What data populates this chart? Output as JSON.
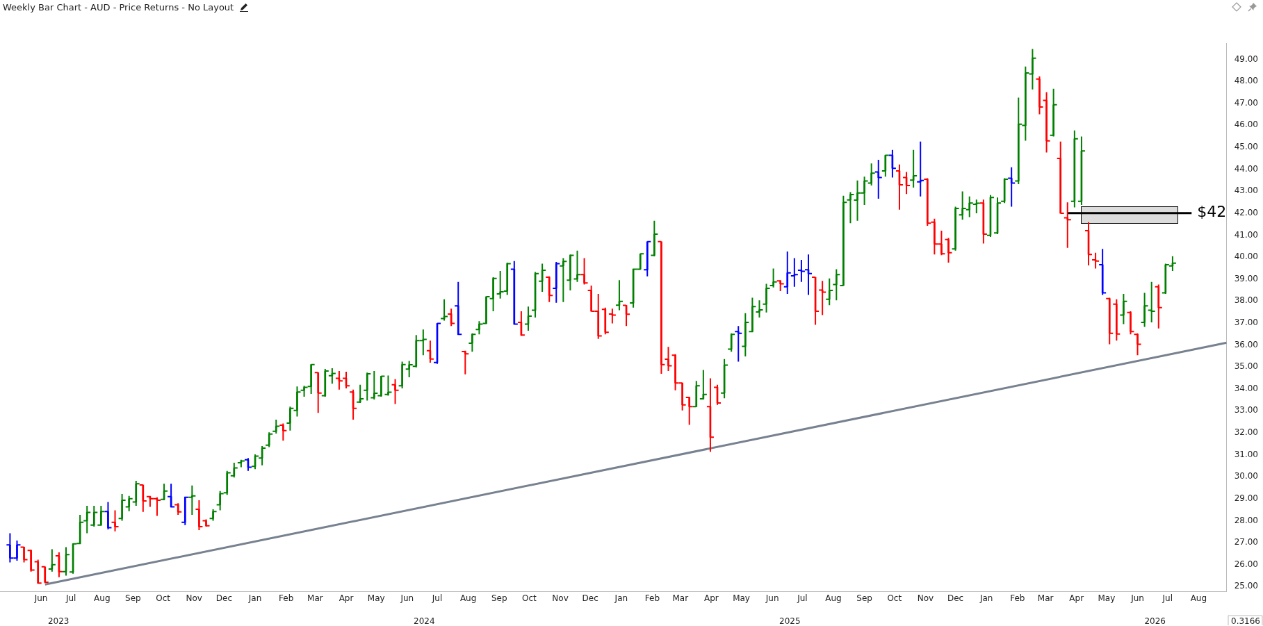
{
  "chart_data": {
    "type": "candlestick",
    "title": "Weekly Bar Chart - AUD - Price Returns - No Layout",
    "x": [
      "2023-05-15",
      "2023-05-22",
      "2023-05-29",
      "2023-06-05",
      "2023-06-12",
      "2023-06-19",
      "2023-06-26",
      "2023-07-03",
      "2023-07-10",
      "2023-07-17",
      "2023-07-24",
      "2023-07-31",
      "2023-08-07",
      "2023-08-14",
      "2023-08-21",
      "2023-08-28",
      "2023-09-04",
      "2023-09-11",
      "2023-09-18",
      "2023-09-25",
      "2023-10-02",
      "2023-10-09",
      "2023-10-16",
      "2023-10-23",
      "2023-10-30",
      "2023-11-06",
      "2023-11-13",
      "2023-11-20",
      "2023-11-27",
      "2023-12-04",
      "2023-12-11",
      "2023-12-18",
      "2023-12-25",
      "2024-01-01",
      "2024-01-08",
      "2024-01-15",
      "2024-01-22",
      "2024-01-29",
      "2024-02-05",
      "2024-02-12",
      "2024-02-19",
      "2024-02-26",
      "2024-03-04",
      "2024-03-11",
      "2024-03-18",
      "2024-03-25",
      "2024-04-01",
      "2024-04-08",
      "2024-04-15",
      "2024-04-22",
      "2024-04-29",
      "2024-05-06",
      "2024-05-13",
      "2024-05-20",
      "2024-05-27",
      "2024-06-03",
      "2024-06-10",
      "2024-06-17",
      "2024-06-24",
      "2024-07-01",
      "2024-07-08",
      "2024-07-15",
      "2024-07-22",
      "2024-07-29",
      "2024-08-05",
      "2024-08-12",
      "2024-08-19",
      "2024-08-26",
      "2024-09-02",
      "2024-09-09",
      "2024-09-16",
      "2024-09-23",
      "2024-09-30",
      "2024-10-07",
      "2024-10-14",
      "2024-10-21",
      "2024-10-28",
      "2024-11-04",
      "2024-11-11",
      "2024-11-18",
      "2024-11-25",
      "2024-12-02",
      "2024-12-09",
      "2024-12-16",
      "2024-12-23",
      "2024-12-30",
      "2025-01-06",
      "2025-01-13",
      "2025-01-20",
      "2025-01-27",
      "2025-02-03",
      "2025-02-10",
      "2025-02-17",
      "2025-02-24",
      "2025-03-03",
      "2025-03-10",
      "2025-03-17",
      "2025-03-24",
      "2025-03-31",
      "2025-04-07",
      "2025-04-14",
      "2025-04-21",
      "2025-04-28",
      "2025-05-05",
      "2025-05-12",
      "2025-05-19",
      "2025-05-26",
      "2025-06-02",
      "2025-06-09",
      "2025-06-16",
      "2025-06-23",
      "2025-06-30",
      "2025-07-07",
      "2025-07-14",
      "2025-07-21",
      "2025-07-28",
      "2025-08-04",
      "2025-08-11",
      "2025-08-18",
      "2025-08-25",
      "2025-09-01",
      "2025-09-08",
      "2025-09-15",
      "2025-09-22",
      "2025-09-29",
      "2025-10-06",
      "2025-10-13",
      "2025-10-20",
      "2025-10-27",
      "2025-11-03",
      "2025-11-10",
      "2025-11-17",
      "2025-11-24",
      "2025-12-01",
      "2025-12-08",
      "2025-12-15",
      "2025-12-22",
      "2025-12-29",
      "2026-01-05",
      "2026-01-12",
      "2026-01-19",
      "2026-01-26",
      "2026-02-02",
      "2026-02-09",
      "2026-02-16",
      "2026-02-23",
      "2026-03-02",
      "2026-03-09",
      "2026-03-16",
      "2026-03-23",
      "2026-03-30",
      "2026-04-06",
      "2026-04-13",
      "2026-04-20",
      "2026-04-27",
      "2026-05-04",
      "2026-05-11",
      "2026-05-18",
      "2026-05-25",
      "2026-06-01",
      "2026-06-08",
      "2026-06-15",
      "2026-06-22",
      "2026-06-29",
      "2026-07-06",
      "2026-07-13",
      "2026-07-20"
    ],
    "ohlc": [
      [
        26.9,
        27.43,
        26.1,
        26.3
      ],
      [
        26.3,
        27.1,
        26.18,
        26.9
      ],
      [
        26.8,
        26.81,
        26.1,
        26.23
      ],
      [
        26.65,
        26.68,
        25.68,
        25.75
      ],
      [
        26.13,
        26.23,
        25.13,
        25.16
      ],
      [
        25.9,
        25.9,
        25.16,
        25.2
      ],
      [
        25.8,
        26.7,
        25.68,
        26.0
      ],
      [
        26.4,
        26.56,
        25.43,
        25.68
      ],
      [
        25.68,
        26.8,
        25.5,
        26.46
      ],
      [
        25.67,
        26.96,
        25.59,
        26.95
      ],
      [
        26.96,
        28.27,
        26.93,
        27.93
      ],
      [
        28.0,
        28.68,
        27.43,
        28.38
      ],
      [
        27.8,
        28.68,
        27.73,
        28.38
      ],
      [
        27.8,
        28.68,
        27.77,
        28.42
      ],
      [
        28.42,
        28.85,
        27.6,
        27.68
      ],
      [
        27.93,
        28.47,
        27.52,
        27.73
      ],
      [
        28.1,
        29.22,
        28.0,
        28.93
      ],
      [
        28.63,
        29.13,
        28.43,
        29.0
      ],
      [
        28.85,
        29.82,
        28.68,
        29.68
      ],
      [
        29.63,
        29.63,
        28.4,
        28.9
      ],
      [
        29.1,
        29.13,
        28.63,
        29.0
      ],
      [
        29.0,
        29.07,
        28.22,
        28.93
      ],
      [
        28.97,
        29.68,
        28.93,
        29.35
      ],
      [
        29.1,
        29.68,
        28.6,
        28.63
      ],
      [
        28.73,
        28.8,
        28.27,
        28.4
      ],
      [
        27.93,
        29.1,
        27.8,
        29.07
      ],
      [
        29.07,
        29.6,
        28.27,
        29.13
      ],
      [
        28.52,
        28.93,
        27.57,
        27.73
      ],
      [
        28.0,
        28.06,
        27.73,
        27.77
      ],
      [
        28.1,
        28.52,
        28.0,
        28.42
      ],
      [
        28.73,
        29.35,
        28.47,
        29.23
      ],
      [
        29.27,
        30.27,
        29.18,
        30.18
      ],
      [
        30.05,
        30.64,
        29.97,
        30.4
      ],
      [
        30.64,
        30.77,
        30.43,
        30.72
      ],
      [
        30.77,
        30.85,
        30.27,
        30.43
      ],
      [
        30.47,
        31.02,
        30.35,
        30.94
      ],
      [
        30.85,
        31.4,
        30.52,
        31.3
      ],
      [
        31.44,
        32.02,
        31.35,
        31.94
      ],
      [
        32.07,
        32.6,
        31.97,
        32.3
      ],
      [
        32.35,
        32.43,
        31.64,
        32.1
      ],
      [
        32.44,
        33.19,
        32.1,
        33.11
      ],
      [
        33.02,
        34.11,
        32.74,
        33.86
      ],
      [
        33.94,
        34.14,
        33.64,
        34.07
      ],
      [
        34.11,
        35.11,
        33.77,
        35.11
      ],
      [
        34.74,
        34.74,
        32.91,
        33.81
      ],
      [
        33.69,
        34.91,
        33.64,
        34.81
      ],
      [
        34.6,
        34.94,
        34.24,
        34.7
      ],
      [
        34.48,
        34.81,
        33.97,
        34.36
      ],
      [
        34.48,
        34.78,
        34.02,
        34.14
      ],
      [
        33.86,
        33.97,
        32.6,
        33.11
      ],
      [
        33.4,
        34.19,
        33.36,
        33.55
      ],
      [
        33.94,
        34.74,
        33.47,
        34.69
      ],
      [
        33.6,
        34.81,
        33.52,
        33.8
      ],
      [
        33.69,
        34.58,
        33.64,
        34.58
      ],
      [
        33.75,
        34.61,
        33.69,
        33.85
      ],
      [
        34.19,
        34.44,
        33.31,
        33.94
      ],
      [
        34.14,
        35.24,
        34.02,
        35.11
      ],
      [
        34.9,
        35.27,
        34.53,
        35.1
      ],
      [
        35.03,
        36.45,
        34.98,
        36.2
      ],
      [
        36.2,
        36.7,
        35.53,
        36.25
      ],
      [
        35.74,
        36.2,
        35.19,
        35.36
      ],
      [
        35.2,
        36.98,
        35.14,
        36.98
      ],
      [
        37.2,
        38.08,
        37.11,
        37.3
      ],
      [
        37.41,
        37.65,
        36.86,
        36.98
      ],
      [
        37.78,
        38.87,
        36.45,
        36.48
      ],
      [
        35.7,
        35.74,
        34.66,
        35.6
      ],
      [
        36.08,
        36.53,
        35.69,
        36.48
      ],
      [
        36.7,
        37.08,
        36.48,
        36.95
      ],
      [
        36.98,
        38.2,
        36.95,
        38.2
      ],
      [
        38.11,
        39.08,
        37.53,
        39.03
      ],
      [
        38.32,
        39.37,
        38.11,
        38.42
      ],
      [
        38.45,
        39.75,
        38.28,
        39.7
      ],
      [
        39.45,
        39.82,
        36.92,
        36.95
      ],
      [
        37.03,
        37.53,
        36.41,
        36.45
      ],
      [
        36.95,
        37.75,
        36.65,
        37.31
      ],
      [
        37.58,
        39.32,
        37.25,
        39.25
      ],
      [
        38.9,
        39.7,
        38.42,
        39.4
      ],
      [
        39.08,
        39.12,
        37.95,
        38.25
      ],
      [
        38.58,
        39.78,
        37.92,
        39.7
      ],
      [
        39.6,
        39.95,
        37.95,
        39.8
      ],
      [
        38.95,
        40.12,
        38.48,
        40.08
      ],
      [
        39.0,
        40.29,
        38.87,
        39.2
      ],
      [
        39.2,
        39.95,
        38.75,
        38.82
      ],
      [
        38.48,
        38.7,
        37.53,
        37.53
      ],
      [
        37.53,
        38.32,
        36.28,
        36.41
      ],
      [
        37.62,
        37.7,
        36.48,
        36.58
      ],
      [
        37.41,
        37.65,
        36.98,
        37.36
      ],
      [
        37.81,
        38.95,
        37.58,
        37.98
      ],
      [
        37.8,
        37.81,
        36.86,
        37.4
      ],
      [
        37.91,
        39.48,
        37.7,
        39.45
      ],
      [
        39.45,
        40.15,
        39.42,
        40.15
      ],
      [
        39.42,
        40.7,
        39.12,
        40.7
      ],
      [
        40.08,
        41.65,
        40.03,
        41.04
      ],
      [
        40.7,
        40.7,
        34.69,
        35.11
      ],
      [
        35.35,
        35.91,
        34.81,
        35.05
      ],
      [
        35.53,
        35.58,
        33.94,
        34.27
      ],
      [
        34.27,
        34.27,
        33.02,
        33.27
      ],
      [
        33.61,
        33.64,
        32.36,
        33.19
      ],
      [
        33.19,
        34.36,
        33.19,
        34.14
      ],
      [
        33.55,
        34.86,
        33.52,
        33.75
      ],
      [
        33.19,
        34.48,
        31.14,
        31.8
      ],
      [
        34.07,
        34.19,
        33.27,
        33.36
      ],
      [
        33.81,
        35.36,
        33.57,
        35.08
      ],
      [
        35.81,
        36.53,
        35.69,
        36.48
      ],
      [
        36.61,
        36.86,
        35.24,
        36.53
      ],
      [
        35.94,
        37.45,
        35.48,
        37.03
      ],
      [
        36.61,
        38.15,
        36.58,
        37.75
      ],
      [
        37.5,
        38.03,
        37.25,
        37.6
      ],
      [
        37.86,
        38.78,
        37.48,
        38.58
      ],
      [
        38.7,
        39.48,
        38.62,
        38.87
      ],
      [
        38.92,
        38.95,
        38.45,
        38.78
      ],
      [
        38.65,
        40.25,
        38.32,
        39.28
      ],
      [
        39.15,
        39.95,
        38.65,
        39.2
      ],
      [
        39.4,
        39.87,
        38.87,
        39.35
      ],
      [
        39.42,
        40.12,
        38.28,
        39.25
      ],
      [
        39.08,
        39.08,
        36.92,
        37.53
      ],
      [
        38.5,
        38.92,
        37.36,
        38.4
      ],
      [
        38.08,
        39.03,
        37.81,
        38.48
      ],
      [
        38.75,
        39.45,
        38.03,
        39.2
      ],
      [
        38.7,
        42.79,
        38.7,
        42.49
      ],
      [
        42.6,
        42.96,
        41.54,
        42.85
      ],
      [
        42.59,
        43.49,
        41.65,
        42.92
      ],
      [
        42.92,
        43.66,
        42.37,
        43.46
      ],
      [
        43.37,
        44.26,
        43.26,
        43.82
      ],
      [
        43.87,
        44.43,
        42.66,
        43.62
      ],
      [
        43.92,
        44.66,
        43.66,
        44.63
      ],
      [
        44.63,
        44.88,
        43.62,
        44.04
      ],
      [
        43.92,
        44.21,
        42.16,
        43.29
      ],
      [
        43.62,
        43.87,
        42.87,
        43.26
      ],
      [
        43.5,
        44.88,
        43.16,
        43.7
      ],
      [
        43.42,
        45.26,
        42.76,
        43.49
      ],
      [
        43.54,
        43.59,
        41.42,
        41.54
      ],
      [
        41.59,
        41.75,
        40.12,
        40.59
      ],
      [
        40.59,
        41.2,
        40.09,
        40.15
      ],
      [
        40.8,
        40.87,
        39.75,
        40.2
      ],
      [
        40.37,
        42.29,
        40.29,
        42.21
      ],
      [
        41.92,
        42.99,
        41.7,
        42.21
      ],
      [
        42.16,
        42.76,
        41.82,
        42.46
      ],
      [
        42.4,
        42.62,
        41.99,
        42.45
      ],
      [
        42.46,
        42.62,
        40.62,
        41.04
      ],
      [
        40.99,
        42.82,
        40.92,
        42.71
      ],
      [
        41.1,
        42.71,
        41.04,
        42.46
      ],
      [
        42.54,
        43.59,
        42.46,
        43.54
      ],
      [
        43.59,
        44.09,
        42.29,
        43.37
      ],
      [
        43.46,
        47.26,
        43.32,
        46.05
      ],
      [
        45.99,
        48.67,
        45.3,
        48.38
      ],
      [
        48.33,
        49.47,
        47.63,
        49.05
      ],
      [
        48.1,
        48.22,
        46.5,
        46.83
      ],
      [
        47.13,
        47.5,
        44.76,
        45.29
      ],
      [
        45.54,
        47.66,
        45.49,
        46.93
      ],
      [
        44.49,
        45.26,
        41.99,
        41.99
      ],
      [
        41.79,
        42.49,
        40.42,
        41.7
      ],
      [
        42.54,
        45.76,
        42.26,
        45.38
      ],
      [
        42.54,
        45.49,
        42.37,
        44.83
      ],
      [
        41.2,
        41.59,
        39.62,
        40.12
      ],
      [
        39.87,
        40.2,
        39.48,
        39.82
      ],
      [
        39.65,
        40.37,
        38.28,
        38.37
      ],
      [
        38.11,
        38.15,
        36.03,
        36.53
      ],
      [
        37.86,
        38.08,
        36.2,
        36.5
      ],
      [
        37.36,
        38.32,
        36.95,
        37.98
      ],
      [
        37.48,
        37.53,
        36.48,
        36.61
      ],
      [
        36.48,
        36.53,
        35.53,
        36.03
      ],
      [
        37.03,
        38.37,
        36.82,
        37.78
      ],
      [
        37.58,
        38.87,
        37.03,
        37.53
      ],
      [
        38.65,
        38.75,
        36.75,
        37.7
      ],
      [
        38.37,
        39.7,
        38.32,
        39.65
      ],
      [
        39.6,
        40.04,
        39.37,
        39.72
      ]
    ],
    "colors": [
      "#0000ff",
      "#0000ff",
      "#ff0000",
      "#ff0000",
      "#ff0000",
      "#ff0000",
      "#008000",
      "#ff0000",
      "#008000",
      "#008000",
      "#008000",
      "#008000",
      "#008000",
      "#008000",
      "#0000ff",
      "#ff0000",
      "#008000",
      "#008000",
      "#008000",
      "#ff0000",
      "#ff0000",
      "#ff0000",
      "#008000",
      "#0000ff",
      "#ff0000",
      "#0000ff",
      "#008000",
      "#ff0000",
      "#ff0000",
      "#008000",
      "#008000",
      "#008000",
      "#008000",
      "#008000",
      "#0000ff",
      "#008000",
      "#008000",
      "#008000",
      "#008000",
      "#ff0000",
      "#008000",
      "#008000",
      "#008000",
      "#008000",
      "#ff0000",
      "#008000",
      "#008000",
      "#ff0000",
      "#ff0000",
      "#ff0000",
      "#008000",
      "#008000",
      "#008000",
      "#008000",
      "#008000",
      "#ff0000",
      "#008000",
      "#008000",
      "#008000",
      "#008000",
      "#ff0000",
      "#0000ff",
      "#008000",
      "#ff0000",
      "#0000ff",
      "#ff0000",
      "#008000",
      "#008000",
      "#008000",
      "#008000",
      "#008000",
      "#008000",
      "#0000ff",
      "#ff0000",
      "#008000",
      "#008000",
      "#008000",
      "#ff0000",
      "#0000ff",
      "#008000",
      "#008000",
      "#008000",
      "#ff0000",
      "#ff0000",
      "#ff0000",
      "#ff0000",
      "#ff0000",
      "#008000",
      "#ff0000",
      "#008000",
      "#008000",
      "#0000ff",
      "#008000",
      "#ff0000",
      "#ff0000",
      "#ff0000",
      "#ff0000",
      "#ff0000",
      "#008000",
      "#008000",
      "#ff0000",
      "#ff0000",
      "#008000",
      "#008000",
      "#0000ff",
      "#008000",
      "#008000",
      "#008000",
      "#008000",
      "#008000",
      "#ff0000",
      "#0000ff",
      "#0000ff",
      "#0000ff",
      "#0000ff",
      "#ff0000",
      "#ff0000",
      "#008000",
      "#008000",
      "#008000",
      "#008000",
      "#008000",
      "#008000",
      "#008000",
      "#0000ff",
      "#008000",
      "#0000ff",
      "#ff0000",
      "#ff0000",
      "#008000",
      "#0000ff",
      "#ff0000",
      "#ff0000",
      "#ff0000",
      "#ff0000",
      "#008000",
      "#008000",
      "#008000",
      "#008000",
      "#ff0000",
      "#008000",
      "#008000",
      "#008000",
      "#0000ff",
      "#008000",
      "#008000",
      "#008000",
      "#ff0000",
      "#ff0000",
      "#008000",
      "#ff0000",
      "#ff0000",
      "#008000",
      "#008000",
      "#ff0000",
      "#ff0000",
      "#0000ff",
      "#ff0000",
      "#ff0000",
      "#008000",
      "#ff0000",
      "#ff0000",
      "#008000",
      "#008000",
      "#ff0000",
      "#008000",
      "#008000"
    ],
    "series": [
      {
        "type": "line",
        "color": "#77818f",
        "x": [
          "2023-06-19",
          "2026-09-12"
        ],
        "values": [
          25.1,
          36.1
        ]
      },
      {
        "type": "line",
        "color": "#000000",
        "x": [
          "2026-04-06",
          "2026-08-08"
        ],
        "values": [
          42,
          42
        ]
      }
    ],
    "xlim": [
      "2023-05-05",
      "2026-09-12"
    ],
    "xticks": [
      {
        "value": "2023-06-15",
        "label": "Jun"
      },
      {
        "value": "2023-07-15",
        "label": "Jul"
      },
      {
        "value": "2023-08-15",
        "label": "Aug"
      },
      {
        "value": "2023-09-15",
        "label": "Sep"
      },
      {
        "value": "2023-10-15",
        "label": "Oct"
      },
      {
        "value": "2023-11-15",
        "label": "Nov"
      },
      {
        "value": "2023-12-15",
        "label": "Dec"
      },
      {
        "value": "2024-01-15",
        "label": "Jan"
      },
      {
        "value": "2024-02-15",
        "label": "Feb"
      },
      {
        "value": "2024-03-15",
        "label": "Mar"
      },
      {
        "value": "2024-04-15",
        "label": "Apr"
      },
      {
        "value": "2024-05-15",
        "label": "May"
      },
      {
        "value": "2024-06-15",
        "label": "Jun"
      },
      {
        "value": "2024-07-15",
        "label": "Jul"
      },
      {
        "value": "2024-08-15",
        "label": "Aug"
      },
      {
        "value": "2024-09-15",
        "label": "Sep"
      },
      {
        "value": "2024-10-15",
        "label": "Oct"
      },
      {
        "value": "2024-11-15",
        "label": "Nov"
      },
      {
        "value": "2024-12-15",
        "label": "Dec"
      },
      {
        "value": "2025-01-15",
        "label": "Jan"
      },
      {
        "value": "2025-02-15",
        "label": "Feb"
      },
      {
        "value": "2025-03-15",
        "label": "Mar"
      },
      {
        "value": "2025-04-15",
        "label": "Apr"
      },
      {
        "value": "2025-05-15",
        "label": "May"
      },
      {
        "value": "2025-06-15",
        "label": "Jun"
      },
      {
        "value": "2025-07-15",
        "label": "Jul"
      },
      {
        "value": "2025-08-15",
        "label": "Aug"
      },
      {
        "value": "2025-09-15",
        "label": "Sep"
      },
      {
        "value": "2025-10-15",
        "label": "Oct"
      },
      {
        "value": "2025-11-15",
        "label": "Nov"
      },
      {
        "value": "2025-12-15",
        "label": "Dec"
      },
      {
        "value": "2026-01-15",
        "label": "Jan"
      },
      {
        "value": "2026-02-15",
        "label": "Feb"
      },
      {
        "value": "2026-03-15",
        "label": "Mar"
      },
      {
        "value": "2026-04-15",
        "label": "Apr"
      },
      {
        "value": "2026-05-15",
        "label": "May"
      },
      {
        "value": "2026-06-15",
        "label": "Jun"
      },
      {
        "value": "2026-07-15",
        "label": "Jul"
      },
      {
        "value": "2026-08-15",
        "label": "Aug"
      }
    ],
    "ylim": [
      24.77,
      49.74
    ],
    "yticks": [
      {
        "value": 25,
        "label": "25.00"
      },
      {
        "value": 26,
        "label": "26.00"
      },
      {
        "value": 27,
        "label": "27.00"
      },
      {
        "value": 28,
        "label": "28.00"
      },
      {
        "value": 29,
        "label": "29.00"
      },
      {
        "value": 30,
        "label": "30.00"
      },
      {
        "value": 31,
        "label": "31.00"
      },
      {
        "value": 32,
        "label": "32.00"
      },
      {
        "value": 33,
        "label": "33.00"
      },
      {
        "value": 34,
        "label": "34.00"
      },
      {
        "value": 35,
        "label": "35.00"
      },
      {
        "value": 36,
        "label": "36.00"
      },
      {
        "value": 37,
        "label": "37.00"
      },
      {
        "value": 38,
        "label": "38.00"
      },
      {
        "value": 39,
        "label": "39.00"
      },
      {
        "value": 40,
        "label": "40.00"
      },
      {
        "value": 41,
        "label": "41.00"
      },
      {
        "value": 42,
        "label": "42.00"
      },
      {
        "value": 43,
        "label": "43.00"
      },
      {
        "value": 44,
        "label": "44.00"
      },
      {
        "value": 45,
        "label": "45.00"
      },
      {
        "value": 46,
        "label": "46.00"
      },
      {
        "value": 47,
        "label": "47.00"
      },
      {
        "value": 48,
        "label": "48.00"
      },
      {
        "value": 49,
        "label": "49.00"
      }
    ],
    "grid": false,
    "legend": false,
    "annotations": [
      {
        "text": "$42",
        "x": "2026-08-08",
        "y": 42
      },
      "2023",
      "2024",
      "2025",
      "2026",
      "0.3166"
    ]
  }
}
